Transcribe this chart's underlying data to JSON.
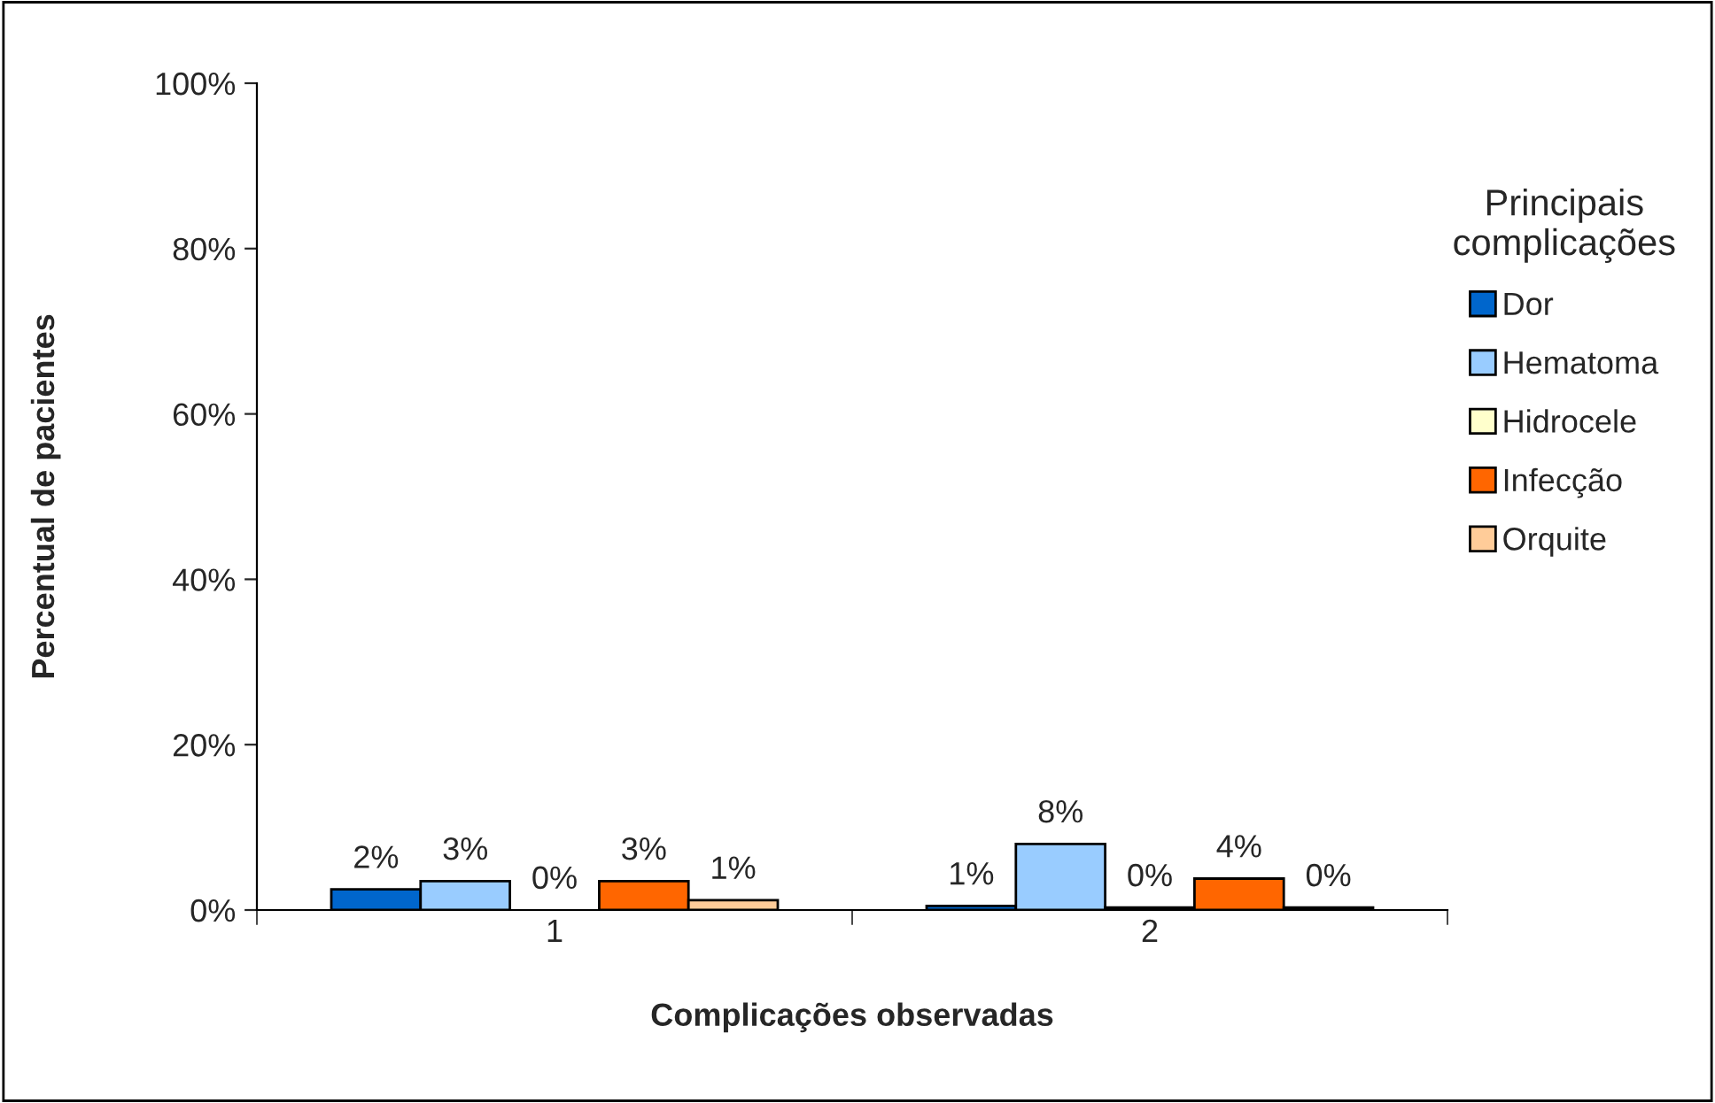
{
  "chart_data": {
    "type": "bar",
    "xlabel": "Complicações observadas",
    "ylabel": "Percentual de pacientes",
    "legend_title": "Principais\ncomplicações",
    "categories": [
      "1",
      "2"
    ],
    "series": [
      {
        "name": "Dor",
        "color": "#0066cc",
        "values": [
          2.5,
          0.5
        ],
        "value_labels": [
          "2%",
          "1%"
        ]
      },
      {
        "name": "Hematoma",
        "color": "#99ccff",
        "values": [
          3.5,
          8.0
        ],
        "value_labels": [
          "3%",
          "8%"
        ]
      },
      {
        "name": "Hidrocele",
        "color": "#ffffcc",
        "values": [
          0,
          0.3
        ],
        "value_labels": [
          "0%",
          "0%"
        ]
      },
      {
        "name": "Infecção",
        "color": "#ff6600",
        "values": [
          3.5,
          3.8
        ],
        "value_labels": [
          "3%",
          "4%"
        ]
      },
      {
        "name": "Orquite",
        "color": "#ffcc99",
        "values": [
          1.2,
          0.3
        ],
        "value_labels": [
          "1%",
          "0%"
        ]
      }
    ],
    "ylim": [
      0,
      100
    ],
    "yticks": [
      {
        "value": 0,
        "label": "0%"
      },
      {
        "value": 20,
        "label": "20%"
      },
      {
        "value": 40,
        "label": "40%"
      },
      {
        "value": 60,
        "label": "60%"
      },
      {
        "value": 80,
        "label": "80%"
      },
      {
        "value": 100,
        "label": "100%"
      }
    ],
    "grid": false,
    "legend": "right"
  }
}
